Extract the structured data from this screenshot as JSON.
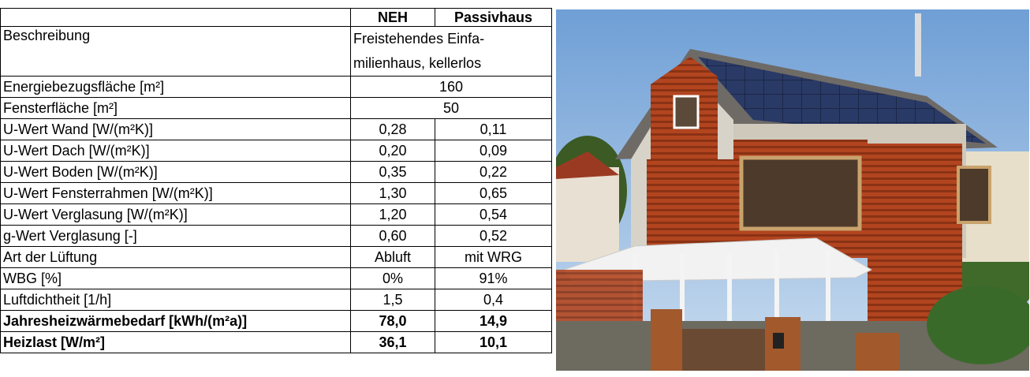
{
  "table": {
    "header": {
      "neh": "NEH",
      "passiv": "Passivhaus"
    },
    "rows": [
      {
        "label": "Beschreibung",
        "value": [
          "Freistehendes Einfa-",
          "milienhaus, kellerlos"
        ]
      },
      {
        "label": "Energiebezugsfläche [m²]",
        "value": "160"
      },
      {
        "label": "Fensterfläche [m²]",
        "value": "50"
      },
      {
        "label": "U-Wert Wand [W/(m²K)]",
        "neh": "0,28",
        "passiv": "0,11"
      },
      {
        "label": "U-Wert Dach [W/(m²K)]",
        "neh": "0,20",
        "passiv": "0,09"
      },
      {
        "label": "U-Wert Boden [W/(m²K)]",
        "neh": "0,35",
        "passiv": "0,22"
      },
      {
        "label": "U-Wert Fensterrahmen [W/(m²K)]",
        "neh": "1,30",
        "passiv": "0,65"
      },
      {
        "label": "U-Wert Verglasung [W/(m²K)]",
        "neh": "1,20",
        "passiv": "0,54"
      },
      {
        "label": "g-Wert Verglasung [-]",
        "neh": "0,60",
        "passiv": "0,52"
      },
      {
        "label": "Art der Lüftung",
        "neh": "Abluft",
        "passiv": "mit WRG"
      },
      {
        "label": "WBG [%]",
        "neh": "0%",
        "passiv": "91%"
      },
      {
        "label": "Luftdichtheit [1/h]",
        "neh": "1,5",
        "passiv": "0,4"
      },
      {
        "label": "Jahresheizwärmebedarf [kWh/(m²a)]",
        "neh": "78,0",
        "passiv": "14,9",
        "bold": true
      },
      {
        "label": "Heizlast [W/m²]",
        "neh": "36,1",
        "passiv": "10,1",
        "bold": true
      }
    ]
  }
}
